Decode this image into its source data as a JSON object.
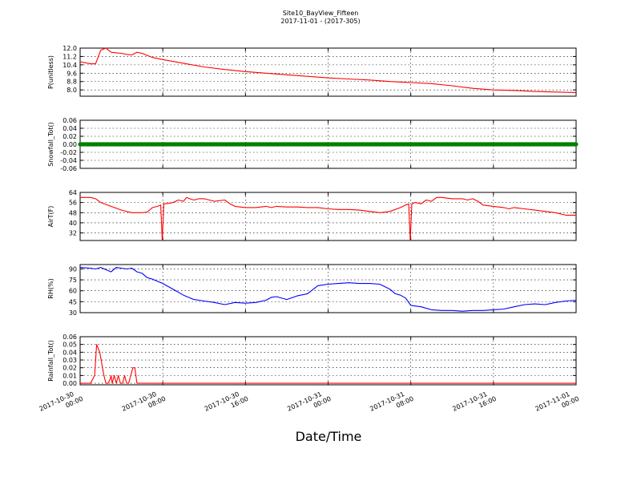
{
  "figure": {
    "title": "Site10_BayView_Fifteen",
    "subtitle": "2017-11-01 - (2017-305)",
    "xlabel": "Date/Time",
    "xticks": [
      "2017-10-30\n00:00",
      "2017-10-30\n08:00",
      "2017-10-30\n16:00",
      "2017-10-31\n00:00",
      "2017-10-31\n08:00",
      "2017-10-31\n16:00",
      "2017-11-01\n00:00"
    ],
    "xlim": [
      "2017-10-30 00:00",
      "2017-11-01 00:00"
    ]
  },
  "chart_data": [
    {
      "type": "line",
      "ylabel": "P(unitless)",
      "ylim": [
        7.4,
        12.0
      ],
      "yticks": [
        "12.0",
        "11.2",
        "10.4",
        "9.6",
        "8.8",
        "8.0"
      ],
      "grid": true,
      "series": [
        {
          "color": "#ff0000",
          "x_hours": [
            0,
            1,
            1.5,
            2,
            2.5,
            3,
            3.5,
            4,
            4.5,
            5,
            5.5,
            6,
            6.5,
            7,
            8,
            10,
            12,
            14,
            16,
            18,
            20,
            22,
            24,
            26,
            28,
            30,
            32,
            34,
            36,
            38,
            40,
            42,
            44,
            46,
            48
          ],
          "values": [
            10.7,
            10.5,
            10.5,
            11.8,
            12.0,
            11.6,
            11.55,
            11.5,
            11.4,
            11.35,
            11.6,
            11.5,
            11.3,
            11.1,
            10.9,
            10.55,
            10.2,
            9.95,
            9.75,
            9.6,
            9.45,
            9.3,
            9.15,
            9.05,
            8.95,
            8.8,
            8.7,
            8.6,
            8.4,
            8.15,
            8.0,
            7.95,
            7.85,
            7.8,
            7.75
          ]
        }
      ]
    },
    {
      "type": "scatter",
      "ylabel": "Snowfall_Tot()",
      "ylim": [
        -0.06,
        0.06
      ],
      "yticks": [
        "0.06",
        "0.04",
        "0.02",
        "0.00",
        "-0.02",
        "-0.04",
        "-0.06"
      ],
      "grid": true,
      "series": [
        {
          "color": "#008000",
          "constant_value": 0.0,
          "x_range_hours": [
            0,
            48
          ]
        }
      ]
    },
    {
      "type": "line",
      "ylabel": "AirT(F)",
      "ylim": [
        26,
        64
      ],
      "yticks": [
        "64",
        "56",
        "48",
        "40",
        "32"
      ],
      "grid": true,
      "series": [
        {
          "color": "#ff0000",
          "x_hours": [
            0,
            1,
            1.5,
            2,
            3,
            4,
            5,
            6,
            6.5,
            7,
            7.5,
            7.8,
            7.95,
            8.1,
            8.3,
            9,
            9.5,
            10,
            10.3,
            10.6,
            11,
            11.5,
            12,
            13,
            14,
            14.5,
            15,
            16,
            17,
            18,
            18.5,
            19,
            20,
            21,
            22,
            23,
            24,
            25,
            26,
            27,
            28,
            29,
            30,
            31,
            31.5,
            31.8,
            31.95,
            32.1,
            32.4,
            33,
            33.5,
            34,
            34.5,
            35,
            36,
            37,
            37.5,
            38,
            38.5,
            39,
            40,
            41,
            41.5,
            42,
            43,
            44,
            45,
            46,
            47,
            48
          ],
          "values": [
            60,
            60,
            59,
            56,
            53,
            50,
            48,
            48,
            48.5,
            52,
            53,
            54,
            26,
            55,
            55,
            56,
            58,
            57,
            60,
            59,
            58,
            59,
            59,
            57,
            58,
            55,
            53,
            52,
            52,
            53,
            52,
            53,
            52.5,
            52.5,
            52,
            52,
            51,
            50.5,
            50.5,
            50,
            49,
            48,
            49,
            52,
            54,
            55,
            26,
            55,
            56,
            55,
            58,
            57,
            60,
            60,
            59,
            59,
            58,
            59,
            57,
            54,
            53,
            52,
            51,
            52,
            51,
            50,
            49,
            48,
            46,
            46
          ]
        }
      ]
    },
    {
      "type": "line",
      "ylabel": "RH(%)",
      "ylim": [
        30,
        96
      ],
      "yticks": [
        "90",
        "75",
        "60",
        "45",
        "30"
      ],
      "grid": true,
      "series": [
        {
          "color": "#0000ff",
          "x_hours": [
            0,
            1,
            1.5,
            2,
            2.5,
            3,
            3.5,
            4,
            4.5,
            5,
            5.5,
            6,
            6.5,
            7,
            8,
            9,
            10,
            11,
            12,
            13,
            14,
            15,
            16,
            17,
            18,
            18.5,
            19,
            20,
            21,
            22,
            23,
            24,
            25,
            26,
            27,
            28,
            29,
            30,
            30.5,
            31,
            31.5,
            32,
            33,
            34,
            35,
            36,
            37,
            38,
            39,
            40,
            41,
            42,
            43,
            44,
            45,
            46,
            47,
            48
          ],
          "values": [
            92,
            91,
            90,
            92,
            89,
            86,
            92,
            91,
            90,
            91,
            86,
            84,
            78,
            76,
            70,
            62,
            54,
            48,
            46,
            44,
            41,
            44,
            43,
            44,
            47,
            51,
            52,
            48,
            53,
            56,
            67,
            69,
            70,
            71,
            70,
            70,
            69,
            62,
            56,
            54,
            50,
            40,
            38,
            34,
            33,
            33,
            32,
            33,
            33,
            34,
            35,
            38,
            41,
            42,
            41,
            44,
            46,
            47
          ]
        }
      ]
    },
    {
      "type": "line",
      "ylabel": "Rainfall_Tot()",
      "ylim": [
        -0.002,
        0.06
      ],
      "yticks": [
        "0.06",
        "0.05",
        "0.04",
        "0.03",
        "0.02",
        "0.01",
        "0.00"
      ],
      "grid": true,
      "series": [
        {
          "color": "#ff0000",
          "x_hours": [
            0,
            1.0,
            1.4,
            1.6,
            1.9,
            2.3,
            2.5,
            2.7,
            2.9,
            3.0,
            3.1,
            3.3,
            3.5,
            3.7,
            3.9,
            4.1,
            4.3,
            4.5,
            4.7,
            4.9,
            5.1,
            5.3,
            5.5,
            5.7,
            5.9,
            6.0,
            48
          ],
          "values": [
            0,
            0,
            0.01,
            0.05,
            0.04,
            0.01,
            0,
            0,
            0.005,
            0.01,
            0,
            0.01,
            0,
            0.01,
            0,
            0,
            0.01,
            0,
            0,
            0.01,
            0.02,
            0.02,
            0,
            0,
            0,
            0,
            0
          ]
        }
      ]
    }
  ]
}
